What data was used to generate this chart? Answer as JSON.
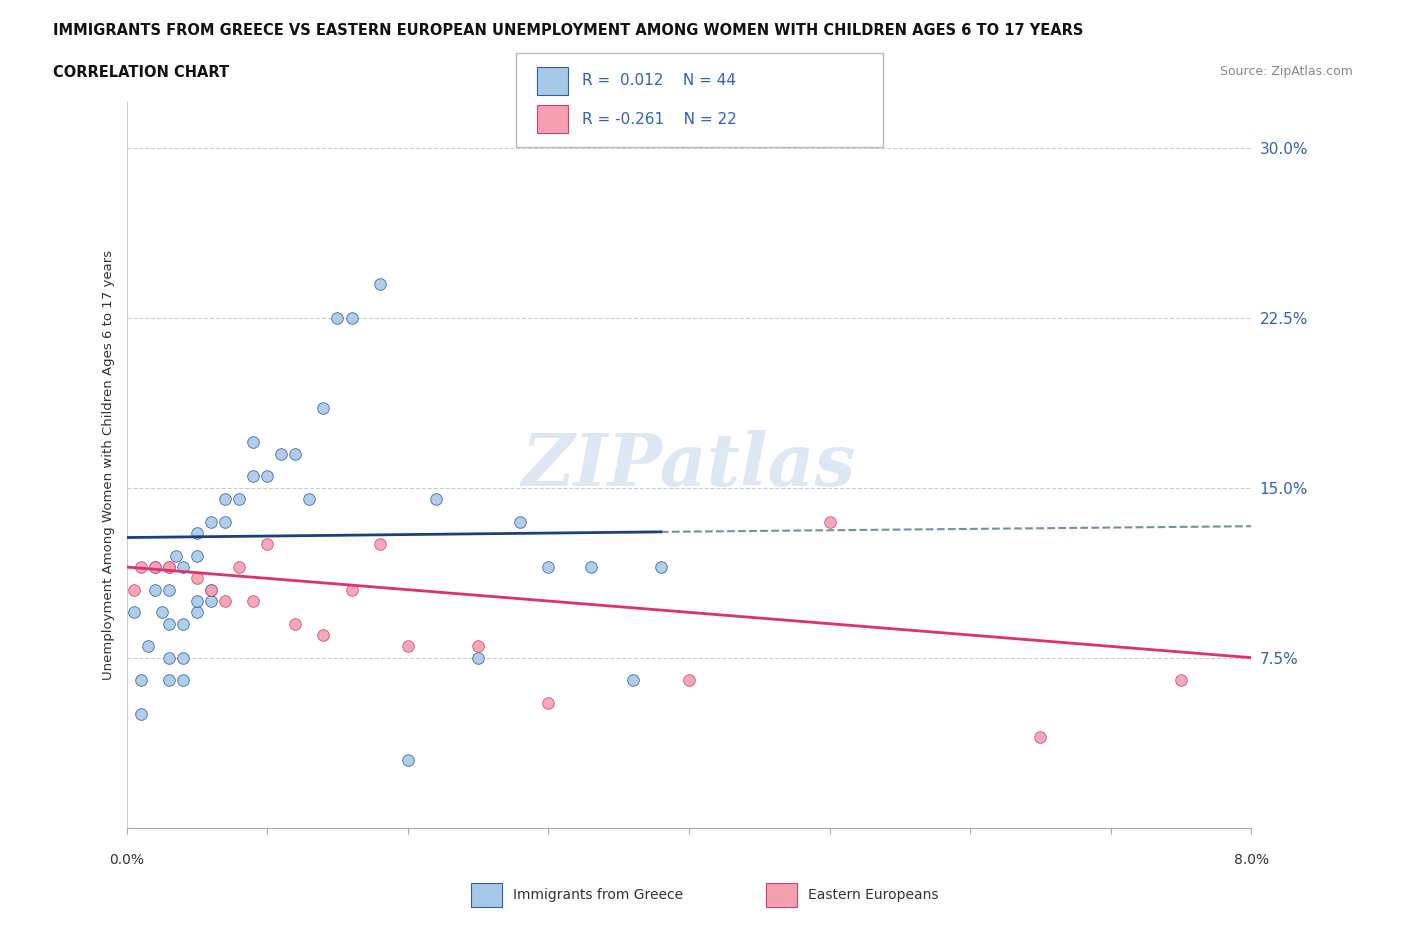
{
  "title": "IMMIGRANTS FROM GREECE VS EASTERN EUROPEAN UNEMPLOYMENT AMONG WOMEN WITH CHILDREN AGES 6 TO 17 YEARS",
  "subtitle": "CORRELATION CHART",
  "source": "Source: ZipAtlas.com",
  "ylabel": "Unemployment Among Women with Children Ages 6 to 17 years",
  "yticks": [
    0.075,
    0.15,
    0.225,
    0.3
  ],
  "ytick_labels": [
    "7.5%",
    "15.0%",
    "22.5%",
    "30.0%"
  ],
  "color_blue": "#a8c8e8",
  "color_pink": "#f4a0b0",
  "color_blue_edge": "#3060a0",
  "color_pink_edge": "#d04070",
  "color_trendline_blue": "#1a4080",
  "color_trendline_pink": "#e03070",
  "watermark_color": "#dde8f4",
  "greece_x": [
    0.0005,
    0.001,
    0.001,
    0.0015,
    0.002,
    0.002,
    0.0025,
    0.003,
    0.003,
    0.003,
    0.003,
    0.0035,
    0.004,
    0.004,
    0.004,
    0.004,
    0.005,
    0.005,
    0.005,
    0.005,
    0.006,
    0.006,
    0.006,
    0.007,
    0.007,
    0.008,
    0.009,
    0.009,
    0.01,
    0.011,
    0.012,
    0.013,
    0.014,
    0.015,
    0.016,
    0.018,
    0.02,
    0.022,
    0.025,
    0.028,
    0.03,
    0.033,
    0.036,
    0.038
  ],
  "greece_y": [
    0.095,
    0.05,
    0.065,
    0.08,
    0.115,
    0.105,
    0.095,
    0.065,
    0.075,
    0.09,
    0.105,
    0.12,
    0.065,
    0.075,
    0.09,
    0.115,
    0.095,
    0.1,
    0.12,
    0.13,
    0.1,
    0.105,
    0.135,
    0.135,
    0.145,
    0.145,
    0.155,
    0.17,
    0.155,
    0.165,
    0.165,
    0.145,
    0.185,
    0.225,
    0.225,
    0.24,
    0.03,
    0.145,
    0.075,
    0.135,
    0.115,
    0.115,
    0.065,
    0.115
  ],
  "eastern_x": [
    0.0005,
    0.001,
    0.002,
    0.003,
    0.003,
    0.005,
    0.006,
    0.007,
    0.008,
    0.009,
    0.01,
    0.012,
    0.014,
    0.016,
    0.018,
    0.02,
    0.025,
    0.03,
    0.04,
    0.05,
    0.065,
    0.075
  ],
  "eastern_y": [
    0.105,
    0.115,
    0.115,
    0.115,
    0.115,
    0.11,
    0.105,
    0.1,
    0.115,
    0.1,
    0.125,
    0.09,
    0.085,
    0.105,
    0.125,
    0.08,
    0.08,
    0.055,
    0.065,
    0.135,
    0.04,
    0.065
  ],
  "trendline_blue_y0": 0.128,
  "trendline_blue_y1": 0.133,
  "trendline_pink_y0": 0.115,
  "trendline_pink_y1": 0.075,
  "xmin": 0.0,
  "xmax": 0.08,
  "ymin": 0.0,
  "ymax": 0.32
}
